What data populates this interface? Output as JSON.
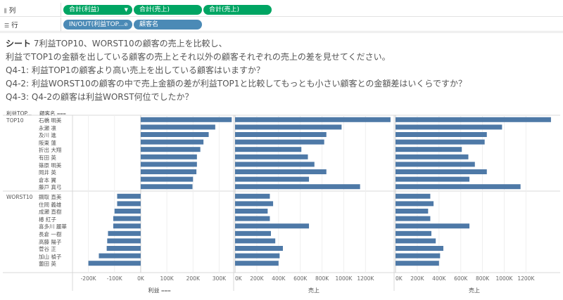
{
  "shelves": {
    "columns": {
      "label": "列",
      "pills": [
        "合計(利益)",
        "合計(売上)",
        "合計(売上)"
      ]
    },
    "rows": {
      "label": "行",
      "pills": [
        "IN/OUT(利益TOP...",
        "顧客名"
      ]
    }
  },
  "question": {
    "sheet": "シート",
    "line1": " 7利益TOP10、WORST10の顧客の売上を比較し、",
    "line2": "利益でTOP1の金額を出している顧客の売上とそれ以外の顧客それぞれの売上の差を見せてください。",
    "line3": "Q4-1: 利益TOP1の顧客より高い売上を出している顧客はいますか？",
    "line4": "Q4-2: 利益WORST10の顧客の中で売上金額の差が利益TOP1と比較してもっとも小さい顧客との金額差はいくらですか？",
    "line5": "Q4-3: Q4-2の顧客は利益WORST何位でしたか？"
  },
  "headers": {
    "group": "利益TOP...",
    "customer": "顧客名"
  },
  "colors": {
    "bar": "#4e79a7",
    "green_pill": "#00a563",
    "blue_pill": "#4b8ab6"
  },
  "chart_data": {
    "type": "bar",
    "orientation": "horizontal",
    "groups": [
      {
        "name": "TOP10",
        "customers": [
          "石橋 明美",
          "永瀬 凛",
          "及川 進",
          "阪東 蓮",
          "折出 大翔",
          "有田 英",
          "篠原 明美",
          "岡井 英",
          "倉本 翼",
          "藤戸 真弓"
        ],
        "profit": [
          348000,
          285000,
          260000,
          240000,
          228000,
          215000,
          215000,
          213000,
          200000,
          198000
        ],
        "sales": [
          1430000,
          980000,
          840000,
          820000,
          610000,
          670000,
          730000,
          840000,
          680000,
          1150000
        ]
      },
      {
        "name": "WORST10",
        "customers": [
          "鋼取 直美",
          "住岡 義雄",
          "成瀬 直樹",
          "椿 紅子",
          "喜多川 麗華",
          "長倉 一樹",
          "高藤 陽子",
          "菅谷 正",
          "加山 禎子",
          "薗田 英"
        ],
        "profit": [
          -90000,
          -90000,
          -100000,
          -105000,
          -105000,
          -125000,
          -128000,
          -130000,
          -160000,
          -200000
        ],
        "sales": [
          320000,
          350000,
          300000,
          320000,
          680000,
          330000,
          370000,
          440000,
          410000,
          400000
        ]
      }
    ],
    "panes": [
      {
        "measure": "利益",
        "xlabel": "利益",
        "xlim": [
          -250000,
          350000
        ],
        "ticks": [
          -200000,
          -100000,
          0,
          100000,
          200000,
          300000
        ],
        "tick_labels": [
          "-200K",
          "-100K",
          "0K",
          "100K",
          "200K",
          "300K"
        ]
      },
      {
        "measure": "売上",
        "xlabel": "売上",
        "xlim": [
          0,
          1450000
        ],
        "ticks": [
          0,
          200000,
          400000,
          600000,
          800000,
          1000000,
          1200000
        ],
        "tick_labels": [
          "0K",
          "200K",
          "400K",
          "600K",
          "800K",
          "1000K",
          "1200K"
        ]
      },
      {
        "measure": "売上",
        "xlabel": "売上",
        "xlim": [
          0,
          1450000
        ],
        "ticks": [
          0,
          200000,
          400000,
          600000,
          800000,
          1000000,
          1200000
        ],
        "tick_labels": [
          "0K",
          "200K",
          "400K",
          "600K",
          "800K",
          "1000K",
          "1200K"
        ]
      }
    ],
    "grid": true,
    "legend": "none"
  }
}
